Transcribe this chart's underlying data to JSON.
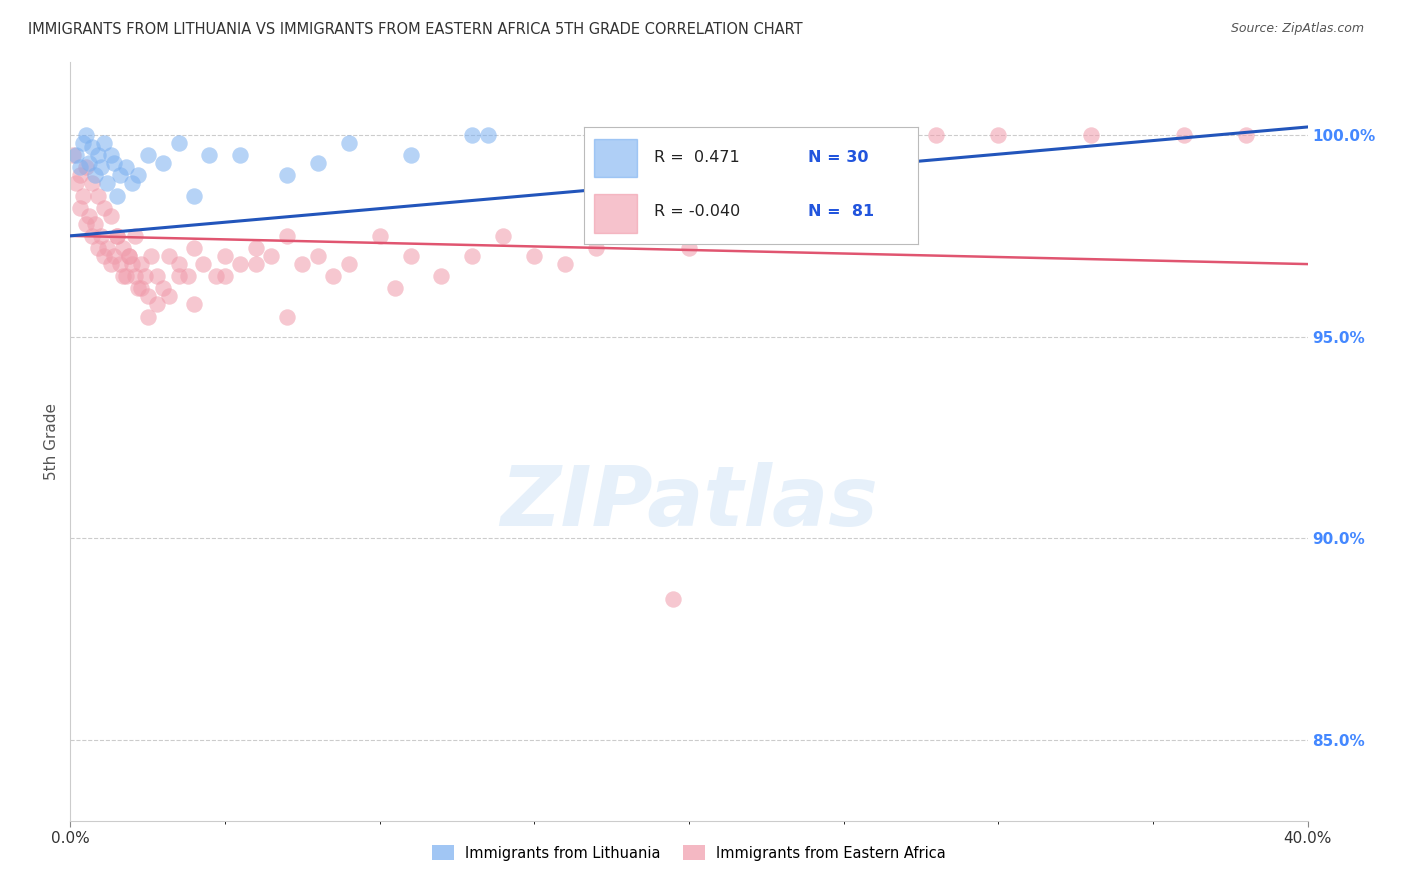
{
  "title": "IMMIGRANTS FROM LITHUANIA VS IMMIGRANTS FROM EASTERN AFRICA 5TH GRADE CORRELATION CHART",
  "source": "Source: ZipAtlas.com",
  "ylabel": "5th Grade",
  "xmin": 0.0,
  "xmax": 40.0,
  "ymin": 83.0,
  "ymax": 101.8,
  "yticks": [
    85.0,
    90.0,
    95.0,
    100.0
  ],
  "ytick_labels": [
    "85.0%",
    "90.0%",
    "95.0%",
    "100.0%"
  ],
  "legend_entries": [
    {
      "label": "Immigrants from Lithuania",
      "R": 0.471,
      "N": 30,
      "color": "#7aaff0"
    },
    {
      "label": "Immigrants from Eastern Africa",
      "R": -0.04,
      "N": 81,
      "color": "#f09aaa"
    }
  ],
  "blue_scatter_x": [
    0.2,
    0.3,
    0.4,
    0.5,
    0.6,
    0.7,
    0.8,
    0.9,
    1.0,
    1.1,
    1.2,
    1.3,
    1.4,
    1.5,
    1.6,
    1.8,
    2.0,
    2.2,
    2.5,
    3.0,
    3.5,
    4.0,
    4.5,
    5.5,
    7.0,
    8.0,
    9.0,
    11.0,
    13.0,
    13.5
  ],
  "blue_scatter_y": [
    99.5,
    99.2,
    99.8,
    100.0,
    99.3,
    99.7,
    99.0,
    99.5,
    99.2,
    99.8,
    98.8,
    99.5,
    99.3,
    98.5,
    99.0,
    99.2,
    98.8,
    99.0,
    99.5,
    99.3,
    99.8,
    98.5,
    99.5,
    99.5,
    99.0,
    99.3,
    99.8,
    99.5,
    100.0,
    100.0
  ],
  "pink_scatter_x": [
    0.1,
    0.2,
    0.3,
    0.4,
    0.5,
    0.6,
    0.7,
    0.8,
    0.9,
    1.0,
    1.1,
    1.2,
    1.3,
    1.4,
    1.5,
    1.6,
    1.7,
    1.8,
    1.9,
    2.0,
    2.1,
    2.2,
    2.3,
    2.4,
    2.5,
    2.6,
    2.8,
    3.0,
    3.2,
    3.5,
    3.8,
    4.0,
    4.3,
    4.7,
    5.0,
    5.5,
    6.0,
    6.5,
    7.0,
    7.5,
    8.0,
    8.5,
    9.0,
    10.0,
    10.5,
    11.0,
    12.0,
    13.0,
    14.0,
    15.0,
    16.0,
    17.0,
    18.5,
    20.0,
    22.0,
    25.0,
    28.0,
    30.0,
    33.0,
    36.0,
    38.0,
    0.3,
    0.5,
    0.7,
    0.9,
    1.1,
    1.3,
    1.5,
    1.7,
    1.9,
    2.1,
    2.3,
    2.5,
    2.8,
    3.2,
    3.5,
    4.0,
    5.0,
    6.0,
    7.0,
    19.5
  ],
  "pink_scatter_y": [
    99.5,
    98.8,
    99.0,
    98.5,
    99.2,
    98.0,
    98.8,
    97.8,
    98.5,
    97.5,
    98.2,
    97.2,
    98.0,
    97.0,
    97.5,
    96.8,
    97.2,
    96.5,
    97.0,
    96.8,
    97.5,
    96.2,
    96.8,
    96.5,
    96.0,
    97.0,
    96.5,
    96.2,
    97.0,
    96.8,
    96.5,
    97.2,
    96.8,
    96.5,
    97.0,
    96.8,
    97.2,
    97.0,
    97.5,
    96.8,
    97.0,
    96.5,
    96.8,
    97.5,
    96.2,
    97.0,
    96.5,
    97.0,
    97.5,
    97.0,
    96.8,
    97.2,
    97.5,
    97.2,
    100.0,
    100.0,
    100.0,
    100.0,
    100.0,
    100.0,
    100.0,
    98.2,
    97.8,
    97.5,
    97.2,
    97.0,
    96.8,
    97.5,
    96.5,
    97.0,
    96.5,
    96.2,
    95.5,
    95.8,
    96.0,
    96.5,
    95.8,
    96.5,
    96.8,
    95.5,
    88.5
  ],
  "blue_line_x0": 0.0,
  "blue_line_x1": 40.0,
  "blue_line_y0": 97.5,
  "blue_line_y1": 100.2,
  "pink_line_x0": 0.0,
  "pink_line_x1": 40.0,
  "pink_line_y0": 97.5,
  "pink_line_y1": 96.8,
  "blue_line_color": "#2255bb",
  "pink_line_color": "#e05570",
  "watermark_text": "ZIPatlas",
  "grid_color": "#cccccc",
  "title_color": "#333333",
  "right_axis_color": "#4488ff",
  "bottom_legend_labels": [
    "Immigrants from Lithuania",
    "Immigrants from Eastern Africa"
  ]
}
